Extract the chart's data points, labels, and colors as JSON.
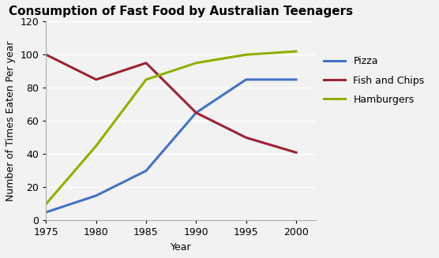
{
  "title": "Consumption of Fast Food by Australian Teenagers",
  "xlabel": "Year",
  "ylabel": "Number of Times Eaten Per year",
  "years": [
    1975,
    1980,
    1985,
    1990,
    1995,
    2000
  ],
  "pizza": [
    5,
    15,
    30,
    65,
    85,
    85
  ],
  "fish_and_chips": [
    100,
    85,
    95,
    65,
    50,
    41
  ],
  "hamburgers": [
    10,
    45,
    85,
    95,
    100,
    102
  ],
  "pizza_color": "#4472C4",
  "fish_color": "#9B2335",
  "hamburger_color": "#8DB000",
  "ylim": [
    0,
    120
  ],
  "yticks": [
    0,
    20,
    40,
    60,
    80,
    100,
    120
  ],
  "xticks": [
    1975,
    1980,
    1985,
    1990,
    1995,
    2000
  ],
  "linewidth": 2.2,
  "legend_labels": [
    "Pizza",
    "Fish and Chips",
    "Hamburgers"
  ],
  "background_color": "#F2F2F2",
  "plot_bg_color": "#F2F2F2",
  "grid_color": "#FFFFFF",
  "title_fontsize": 11,
  "axis_fontsize": 9,
  "tick_fontsize": 9
}
